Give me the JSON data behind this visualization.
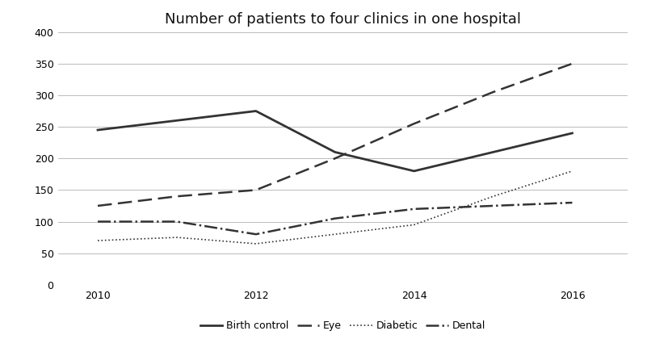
{
  "title": "Number of patients to four clinics in one hospital",
  "x": [
    2010,
    2011,
    2012,
    2013,
    2014,
    2015,
    2016
  ],
  "birth_control": [
    245,
    260,
    275,
    210,
    180,
    210,
    240
  ],
  "eye": [
    125,
    140,
    150,
    200,
    255,
    305,
    350
  ],
  "diabetic": [
    70,
    75,
    65,
    80,
    95,
    140,
    180
  ],
  "dental": [
    100,
    100,
    80,
    105,
    120,
    125,
    130
  ],
  "ylim": [
    0,
    400
  ],
  "yticks": [
    0,
    50,
    100,
    150,
    200,
    250,
    300,
    350,
    400
  ],
  "xticks": [
    2010,
    2012,
    2014,
    2016
  ],
  "line_color": "#333333",
  "bg_color": "#ffffff",
  "grid_color": "#bbbbbb",
  "title_fontsize": 13,
  "legend_fontsize": 9,
  "tick_fontsize": 9
}
